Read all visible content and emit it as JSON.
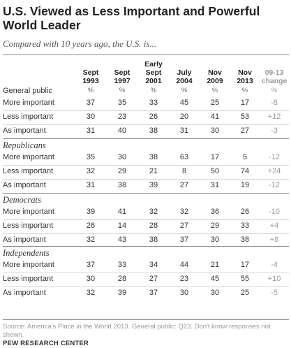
{
  "title": "U.S. Viewed as Less Important and Powerful World Leader",
  "subtitle": "Compared with 10 years ago, the U.S. is...",
  "unit_label": "%",
  "source": "Source: America's Place in the World 2013. General public: Q23. Don't know responses not shown.",
  "org": "PEW RESEARCH CENTER",
  "chart_data": {
    "type": "table",
    "columns": [
      "Sept\n1993",
      "Sept\n1997",
      "Early\nSept\n2001",
      "July\n2004",
      "Nov\n2009",
      "Nov\n2013",
      "09-13\nchange"
    ],
    "groups": [
      {
        "name": "General public",
        "rows": [
          {
            "label": "More important",
            "values": [
              "37",
              "35",
              "33",
              "45",
              "25",
              "17",
              "-8"
            ]
          },
          {
            "label": "Less important",
            "values": [
              "30",
              "23",
              "26",
              "20",
              "41",
              "53",
              "+12"
            ]
          },
          {
            "label": "As important",
            "values": [
              "31",
              "40",
              "38",
              "31",
              "30",
              "27",
              "-3"
            ]
          }
        ]
      },
      {
        "name": "Republicans",
        "rows": [
          {
            "label": "More important",
            "values": [
              "35",
              "30",
              "38",
              "63",
              "17",
              "5",
              "-12"
            ]
          },
          {
            "label": "Less important",
            "values": [
              "32",
              "29",
              "21",
              "8",
              "50",
              "74",
              "+24"
            ]
          },
          {
            "label": "As important",
            "values": [
              "31",
              "38",
              "39",
              "27",
              "31",
              "19",
              "-12"
            ]
          }
        ]
      },
      {
        "name": "Democrats",
        "rows": [
          {
            "label": "More important",
            "values": [
              "39",
              "41",
              "32",
              "32",
              "36",
              "26",
              "-10"
            ]
          },
          {
            "label": "Less important",
            "values": [
              "26",
              "14",
              "28",
              "27",
              "29",
              "33",
              "+4"
            ]
          },
          {
            "label": "As important",
            "values": [
              "32",
              "43",
              "38",
              "37",
              "30",
              "38",
              "+8"
            ]
          }
        ]
      },
      {
        "name": "Independents",
        "rows": [
          {
            "label": "More important",
            "values": [
              "37",
              "33",
              "34",
              "44",
              "21",
              "17",
              "-4"
            ]
          },
          {
            "label": "Less important",
            "values": [
              "30",
              "28",
              "27",
              "23",
              "45",
              "55",
              "+10"
            ]
          },
          {
            "label": "As important",
            "values": [
              "32",
              "39",
              "37",
              "30",
              "30",
              "25",
              "-5"
            ]
          }
        ]
      }
    ]
  }
}
